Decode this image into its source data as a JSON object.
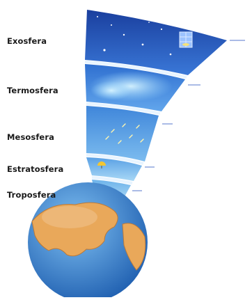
{
  "layers": [
    {
      "label": "Exosfera",
      "color_top": "#1a3f9e",
      "color_bottom": "#3a78d8"
    },
    {
      "label": "Termosfera",
      "color_top": "#2f6fd0",
      "color_bottom": "#62a6ec"
    },
    {
      "label": "Mesosfera",
      "color_top": "#3f86da",
      "color_bottom": "#7cbcef"
    },
    {
      "label": "Estratosfera",
      "color_top": "#5aa0e4",
      "color_bottom": "#a8d8f6"
    },
    {
      "label": "Troposfera",
      "color_top": "#6db3ea",
      "color_bottom": "#c4e7fa"
    }
  ],
  "colors": {
    "ocean": "#3c8ad6",
    "land": "#e9a85a",
    "separator": "#e8f4ff"
  }
}
